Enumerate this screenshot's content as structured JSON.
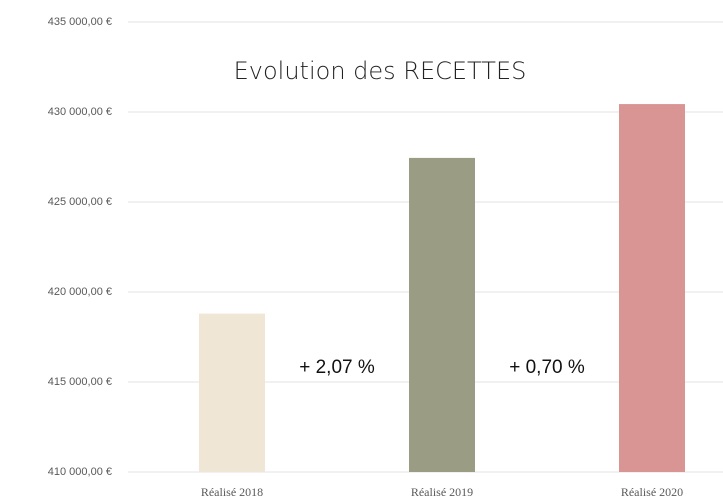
{
  "chart_data": {
    "type": "bar",
    "title": "Evolution des RECETTES",
    "categories": [
      "Réalisé 2018",
      "Réalisé 2019",
      "Réalisé 2020"
    ],
    "values": [
      418800,
      427450,
      430440
    ],
    "colors": [
      "#efe6d6",
      "#9a9c84",
      "#d99494"
    ],
    "ylim": [
      410000,
      435000
    ],
    "yticks": [
      {
        "value": 410000,
        "label": "410 000,00 €"
      },
      {
        "value": 415000,
        "label": "415 000,00 €"
      },
      {
        "value": 420000,
        "label": "420 000,00 €"
      },
      {
        "value": 425000,
        "label": "425 000,00 €"
      },
      {
        "value": 430000,
        "label": "430 000,00 €"
      },
      {
        "value": 435000,
        "label": "435 000,00 €"
      }
    ],
    "grid": true,
    "annotations": [
      "+ 2,07 %",
      "+ 0,70 %"
    ]
  }
}
